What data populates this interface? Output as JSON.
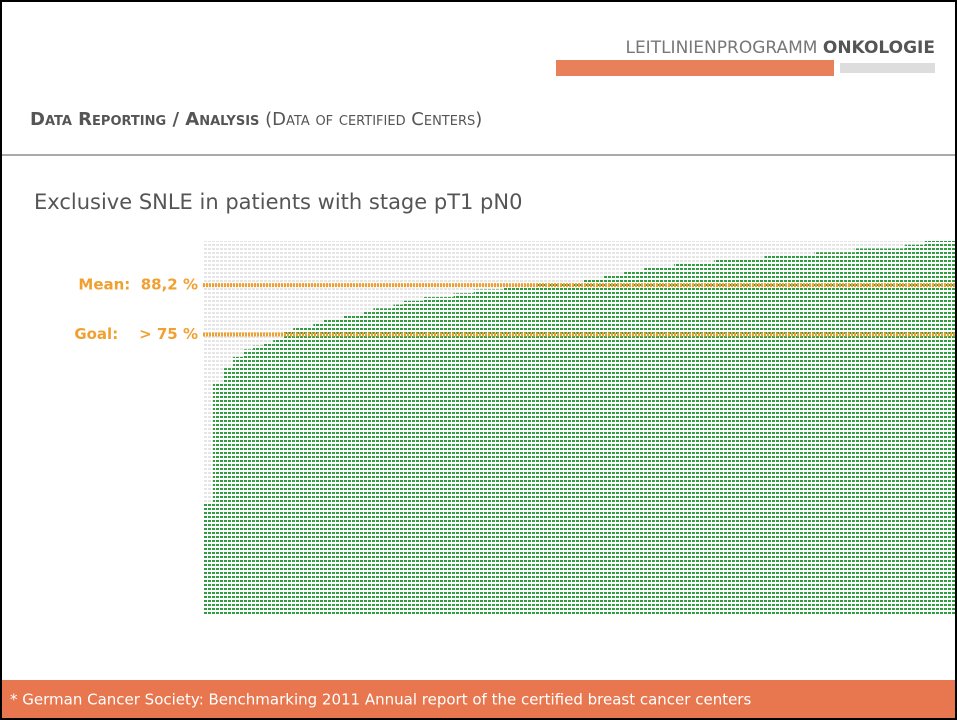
{
  "header": {
    "logo_light": "LEITLINIENPROGRAMM",
    "logo_bold": "ONKOLOGIE",
    "title_bold": "Data Reporting / Analysis",
    "title_rest": "(Data of certified Centers)"
  },
  "chart_data": {
    "type": "bar",
    "title": "Exclusive SNLE in patients with stage pT1 pN0",
    "values": [
      30,
      62,
      66,
      69,
      71,
      72,
      73,
      74,
      76,
      77,
      77,
      78,
      79,
      79,
      80,
      80,
      81,
      82,
      82,
      83,
      84,
      84,
      85,
      85,
      85,
      86,
      86,
      87,
      87,
      87,
      88,
      88,
      88,
      89,
      89,
      89,
      89,
      89,
      90,
      90,
      91,
      91,
      92,
      92,
      93,
      93,
      93,
      94,
      94,
      94,
      94,
      95,
      95,
      95,
      95,
      95,
      96,
      96,
      96,
      96,
      96,
      97,
      97,
      97,
      97,
      98,
      98,
      98,
      98,
      98,
      99,
      99,
      100,
      100,
      100
    ],
    "color": "#2e9e3e",
    "ylim": [
      0,
      100
    ],
    "reference_lines": [
      {
        "label": "Mean:  88,2 %",
        "value": 88.2,
        "color": "#f0a030"
      },
      {
        "label": "Goal:    > 75 %",
        "value": 75,
        "color": "#f0a030"
      }
    ]
  },
  "footer": "* German Cancer Society: Benchmarking 2011 Annual report of the certified breast cancer centers"
}
